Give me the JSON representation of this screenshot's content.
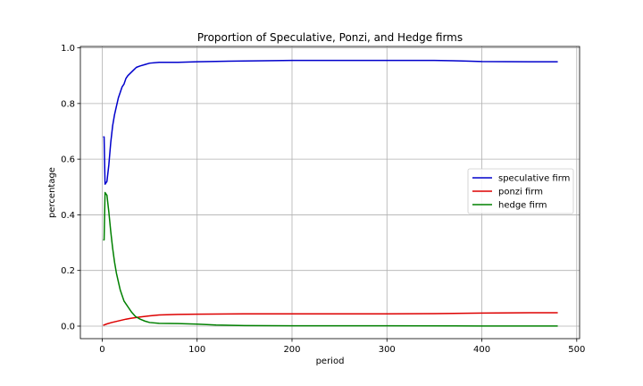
{
  "chart_data": {
    "type": "line",
    "title": "Proportion of Speculative, Ponzi, and Hedge firms",
    "xlabel": "period",
    "ylabel": "percentage",
    "xlim": [
      -23,
      503
    ],
    "ylim": [
      -0.045,
      1.005
    ],
    "xticks": [
      0,
      100,
      200,
      300,
      400,
      500
    ],
    "yticks": [
      0.0,
      0.2,
      0.4,
      0.6,
      0.8,
      1.0
    ],
    "grid": true,
    "legend_position": "center-right",
    "series": [
      {
        "name": "speculative firm",
        "color": "#0000cc",
        "points": [
          [
            1,
            0.68
          ],
          [
            2,
            0.68
          ],
          [
            3,
            0.51
          ],
          [
            5,
            0.52
          ],
          [
            7,
            0.58
          ],
          [
            9,
            0.66
          ],
          [
            11,
            0.72
          ],
          [
            13,
            0.76
          ],
          [
            15,
            0.79
          ],
          [
            17,
            0.82
          ],
          [
            19,
            0.84
          ],
          [
            21,
            0.86
          ],
          [
            23,
            0.87
          ],
          [
            25,
            0.89
          ],
          [
            27,
            0.9
          ],
          [
            30,
            0.91
          ],
          [
            33,
            0.92
          ],
          [
            36,
            0.93
          ],
          [
            40,
            0.935
          ],
          [
            45,
            0.94
          ],
          [
            50,
            0.945
          ],
          [
            60,
            0.948
          ],
          [
            80,
            0.948
          ],
          [
            100,
            0.95
          ],
          [
            150,
            0.953
          ],
          [
            200,
            0.955
          ],
          [
            250,
            0.955
          ],
          [
            300,
            0.955
          ],
          [
            350,
            0.955
          ],
          [
            380,
            0.953
          ],
          [
            400,
            0.951
          ],
          [
            450,
            0.95
          ],
          [
            480,
            0.95
          ]
        ]
      },
      {
        "name": "ponzi firm",
        "color": "#dd0000",
        "points": [
          [
            1,
            0.003
          ],
          [
            5,
            0.008
          ],
          [
            10,
            0.013
          ],
          [
            15,
            0.017
          ],
          [
            20,
            0.021
          ],
          [
            25,
            0.025
          ],
          [
            30,
            0.028
          ],
          [
            40,
            0.033
          ],
          [
            50,
            0.037
          ],
          [
            60,
            0.04
          ],
          [
            80,
            0.042
          ],
          [
            100,
            0.043
          ],
          [
            150,
            0.044
          ],
          [
            200,
            0.044
          ],
          [
            250,
            0.044
          ],
          [
            300,
            0.044
          ],
          [
            350,
            0.045
          ],
          [
            400,
            0.047
          ],
          [
            450,
            0.048
          ],
          [
            480,
            0.048
          ]
        ]
      },
      {
        "name": "hedge firm",
        "color": "#008000",
        "points": [
          [
            1,
            0.31
          ],
          [
            2,
            0.31
          ],
          [
            3,
            0.48
          ],
          [
            5,
            0.47
          ],
          [
            7,
            0.41
          ],
          [
            9,
            0.34
          ],
          [
            11,
            0.28
          ],
          [
            13,
            0.23
          ],
          [
            15,
            0.19
          ],
          [
            17,
            0.16
          ],
          [
            19,
            0.13
          ],
          [
            21,
            0.11
          ],
          [
            23,
            0.09
          ],
          [
            25,
            0.08
          ],
          [
            28,
            0.065
          ],
          [
            31,
            0.05
          ],
          [
            35,
            0.035
          ],
          [
            40,
            0.025
          ],
          [
            45,
            0.018
          ],
          [
            50,
            0.013
          ],
          [
            60,
            0.01
          ],
          [
            80,
            0.009
          ],
          [
            100,
            0.007
          ],
          [
            120,
            0.004
          ],
          [
            150,
            0.002
          ],
          [
            200,
            0.001
          ],
          [
            300,
            0.001
          ],
          [
            400,
            0.0005
          ],
          [
            480,
            0.0005
          ]
        ]
      }
    ]
  }
}
